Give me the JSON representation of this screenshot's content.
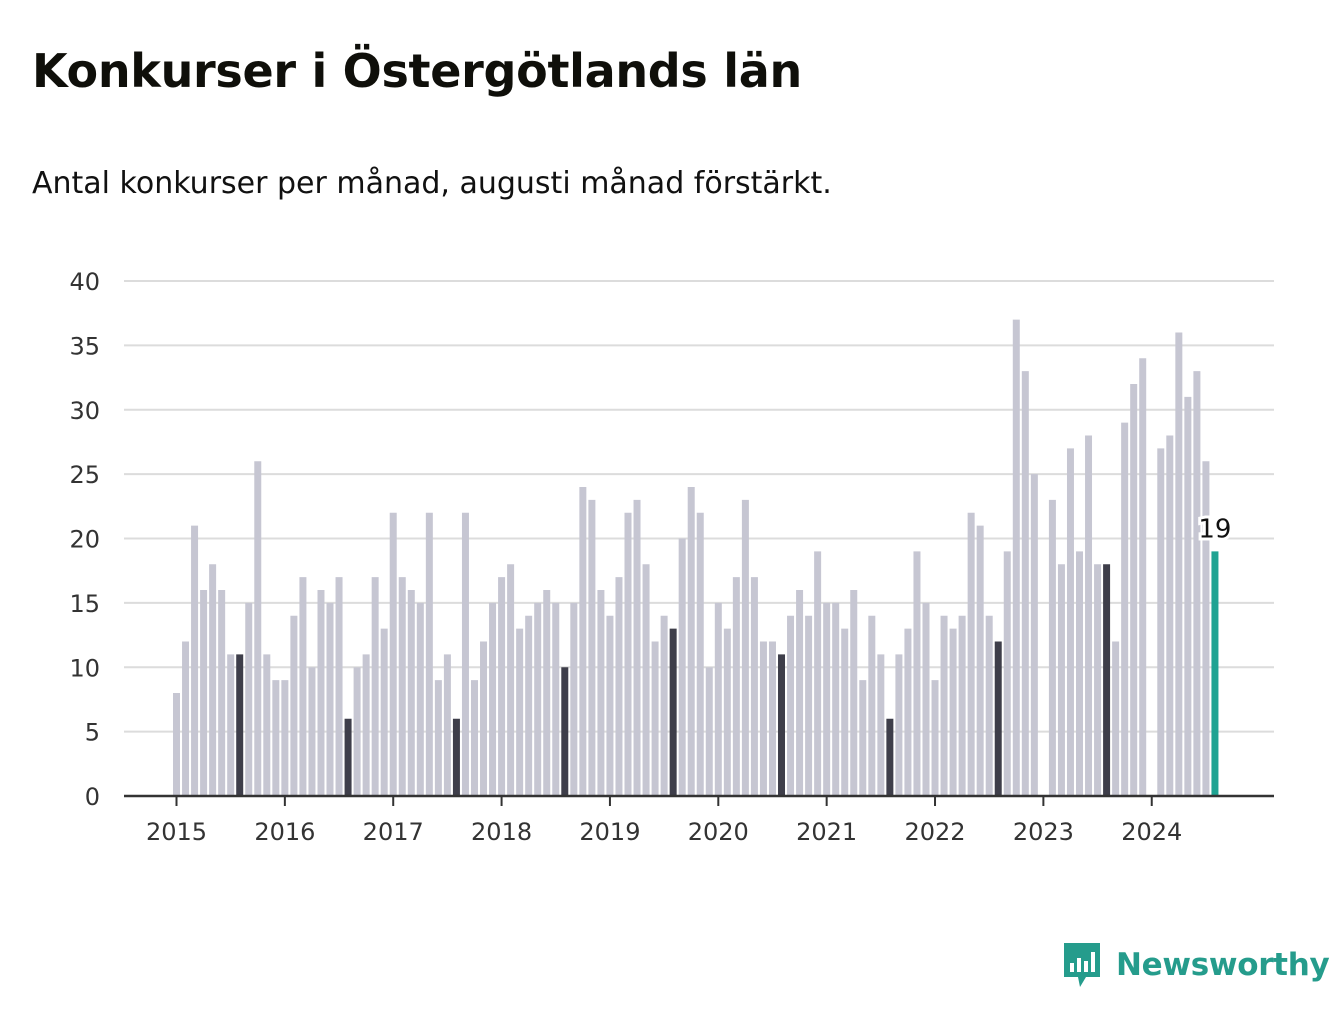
{
  "header": {
    "title": "Konkurser i Östergötlands län",
    "subtitle": "Antal konkurser per månad, augusti månad förstärkt."
  },
  "brand": {
    "name": "Newsworthy",
    "icon": "newsworthy-logo-icon"
  },
  "colors": {
    "bar": "#c6c6d2",
    "august": "#3e3e4a",
    "latest": "#1fa392",
    "grid": "#dcdcdc",
    "axis": "#333333",
    "brand": "#259c8c"
  },
  "chart_data": {
    "type": "bar",
    "ylim": [
      0,
      40
    ],
    "yticks": [
      "0",
      "5",
      "10",
      "15",
      "20",
      "25",
      "30",
      "35",
      "40"
    ],
    "xticks": [
      "2015",
      "2016",
      "2017",
      "2018",
      "2019",
      "2020",
      "2021",
      "2022",
      "2023",
      "2024"
    ],
    "start": "2015-01",
    "grid": true,
    "highlight": "augusti",
    "latest_label": "19",
    "values": [
      8,
      12,
      21,
      16,
      18,
      16,
      11,
      11,
      15,
      26,
      11,
      9,
      9,
      14,
      17,
      10,
      16,
      15,
      17,
      6,
      10,
      11,
      17,
      13,
      22,
      17,
      16,
      15,
      22,
      9,
      11,
      6,
      22,
      9,
      12,
      15,
      17,
      18,
      13,
      14,
      15,
      16,
      15,
      10,
      15,
      24,
      23,
      16,
      14,
      17,
      22,
      23,
      18,
      12,
      14,
      13,
      20,
      24,
      22,
      10,
      15,
      13,
      17,
      23,
      17,
      12,
      12,
      11,
      14,
      16,
      14,
      19,
      15,
      15,
      13,
      16,
      9,
      14,
      11,
      6,
      11,
      13,
      19,
      15,
      9,
      14,
      13,
      14,
      22,
      21,
      14,
      12,
      19,
      37,
      33,
      25,
      0,
      23,
      18,
      27,
      19,
      28,
      18,
      18,
      12,
      29,
      32,
      34,
      0,
      27,
      28,
      36,
      31,
      33,
      26,
      19
    ]
  }
}
